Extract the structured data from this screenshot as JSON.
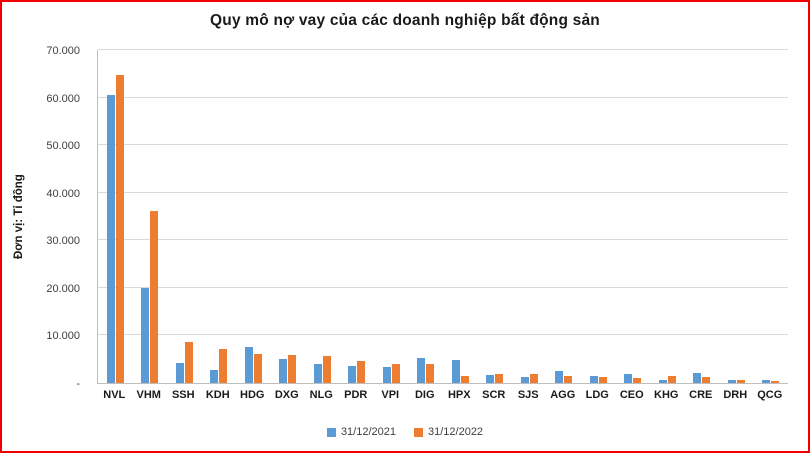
{
  "colors": {
    "frame_border": "#f20000",
    "grid": "#d9d9d9",
    "axis": "#bfbfbf",
    "series_2021": "#5B9BD5",
    "series_2022": "#ED7D31"
  },
  "chart_data": {
    "type": "bar",
    "title": "Quy mô nợ vay của các doanh nghiệp bất động sản",
    "ylabel": "Đơn vị: Tỉ đồng",
    "xlabel": "",
    "ylim": [
      0,
      70000
    ],
    "ytick_step": 10000,
    "ytick_labels": [
      "-",
      "10.000",
      "20.000",
      "30.000",
      "40.000",
      "50.000",
      "60.000",
      "70.000"
    ],
    "grid": true,
    "legend_position": "bottom",
    "categories": [
      "NVL",
      "VHM",
      "SSH",
      "KDH",
      "HDG",
      "DXG",
      "NLG",
      "PDR",
      "VPI",
      "DIG",
      "HPX",
      "SCR",
      "SJS",
      "AGG",
      "LDG",
      "CEO",
      "KHG",
      "CRE",
      "DRH",
      "QCG"
    ],
    "series": [
      {
        "name": "31/12/2021",
        "color": "#5B9BD5",
        "values": [
          60500,
          19900,
          4300,
          2700,
          7500,
          5000,
          3900,
          3500,
          3300,
          5200,
          4900,
          1600,
          1300,
          2600,
          1500,
          1900,
          700,
          2100,
          600,
          600
        ]
      },
      {
        "name": "31/12/2022",
        "color": "#ED7D31",
        "values": [
          64700,
          36200,
          8600,
          7100,
          6000,
          5900,
          5600,
          4600,
          4100,
          4000,
          1400,
          1900,
          1800,
          1500,
          1200,
          1100,
          1500,
          1300,
          700,
          400
        ]
      }
    ]
  }
}
